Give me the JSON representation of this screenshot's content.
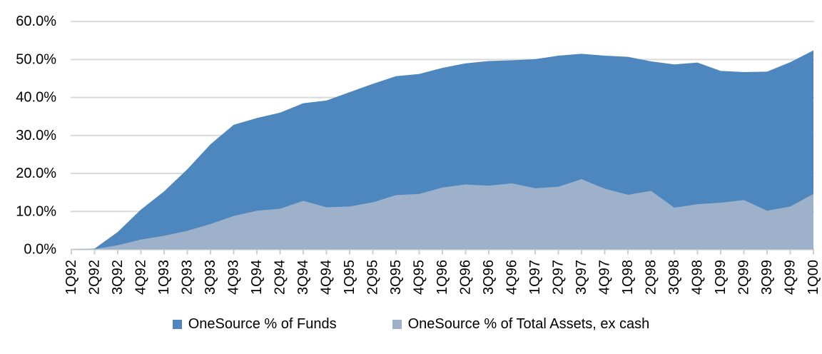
{
  "chart_data": {
    "type": "area",
    "title": "",
    "xlabel": "",
    "ylabel": "",
    "ylim": [
      0,
      60
    ],
    "ytick_step": 10,
    "y_ticks": [
      "0.0%",
      "10.0%",
      "20.0%",
      "30.0%",
      "40.0%",
      "50.0%",
      "60.0%"
    ],
    "grid": "horizontal",
    "legend_position": "bottom",
    "x_label_rotation_deg": -90,
    "categories": [
      "1Q92",
      "2Q92",
      "3Q92",
      "4Q92",
      "1Q93",
      "2Q93",
      "3Q93",
      "4Q93",
      "1Q94",
      "2Q94",
      "3Q94",
      "4Q94",
      "1Q95",
      "2Q95",
      "3Q95",
      "4Q95",
      "1Q96",
      "2Q96",
      "3Q96",
      "4Q96",
      "1Q97",
      "2Q97",
      "3Q97",
      "4Q97",
      "1Q98",
      "2Q98",
      "3Q98",
      "4Q98",
      "1Q99",
      "2Q99",
      "3Q99",
      "4Q99",
      "1Q00"
    ],
    "series": [
      {
        "name": "OneSource % of Funds",
        "color": "#4E87BD",
        "values": [
          0.0,
          0.2,
          4.6,
          10.5,
          15.3,
          21.1,
          27.7,
          32.8,
          34.6,
          36.0,
          38.5,
          39.2,
          41.4,
          43.6,
          45.6,
          46.2,
          47.8,
          49.0,
          49.6,
          49.8,
          50.1,
          51.0,
          51.5,
          51.0,
          50.7,
          49.5,
          48.7,
          49.2,
          47.0,
          46.7,
          46.8,
          49.3,
          52.4
        ]
      },
      {
        "name": "OneSource % of Total Assets, ex cash",
        "color": "#9DB1CB",
        "values": [
          0.0,
          0.1,
          1.1,
          2.6,
          3.6,
          4.9,
          6.7,
          8.8,
          10.2,
          10.7,
          12.8,
          11.1,
          11.3,
          12.4,
          14.3,
          14.6,
          16.3,
          17.1,
          16.8,
          17.4,
          16.1,
          16.5,
          18.5,
          16.0,
          14.4,
          15.4,
          11.0,
          11.9,
          12.3,
          13.0,
          10.2,
          11.3,
          14.6
        ]
      }
    ]
  },
  "style_colors": {
    "background": "#FFFFFF",
    "gridline": "#D9D9D9",
    "axis_line": "#CFCFCF",
    "tick_mark": "#CFCFCF",
    "text": "#000000"
  }
}
